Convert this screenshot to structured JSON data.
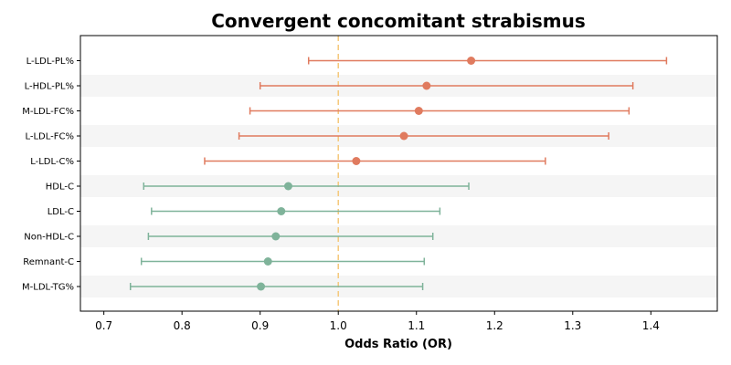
{
  "chart_data": {
    "type": "forest",
    "title": "Convergent concomitant strabismus",
    "xlabel": "Odds Ratio (OR)",
    "ylabel": "",
    "xlim": [
      0.67,
      1.485
    ],
    "xticks": [
      0.7,
      0.8,
      0.9,
      1.0,
      1.1,
      1.2,
      1.3,
      1.4
    ],
    "xtick_labels": [
      "0.7",
      "0.8",
      "0.9",
      "1.0",
      "1.1",
      "1.2",
      "1.3",
      "1.4"
    ],
    "reference_line": 1.0,
    "reference_color": "#f5c87a",
    "grid": false,
    "row_band_color": "#f5f5f5",
    "colors": {
      "risk": "#e07b5f",
      "protective": "#7fb39a"
    },
    "rows": [
      {
        "label": "L-LDL-PL%",
        "or": 1.17,
        "lower": 0.962,
        "upper": 1.42,
        "group": "risk"
      },
      {
        "label": "L-HDL-PL%",
        "or": 1.113,
        "lower": 0.9,
        "upper": 1.377,
        "group": "risk"
      },
      {
        "label": "M-LDL-FC%",
        "or": 1.103,
        "lower": 0.887,
        "upper": 1.372,
        "group": "risk"
      },
      {
        "label": "L-LDL-FC%",
        "or": 1.084,
        "lower": 0.873,
        "upper": 1.346,
        "group": "risk"
      },
      {
        "label": "L-LDL-C%",
        "or": 1.023,
        "lower": 0.829,
        "upper": 1.265,
        "group": "risk"
      },
      {
        "label": "HDL-C",
        "or": 0.936,
        "lower": 0.751,
        "upper": 1.167,
        "group": "protective"
      },
      {
        "label": "LDL-C",
        "or": 0.927,
        "lower": 0.761,
        "upper": 1.13,
        "group": "protective"
      },
      {
        "label": "Non-HDL-C",
        "or": 0.92,
        "lower": 0.757,
        "upper": 1.121,
        "group": "protective"
      },
      {
        "label": "Remnant-C",
        "or": 0.91,
        "lower": 0.748,
        "upper": 1.11,
        "group": "protective"
      },
      {
        "label": "M-LDL-TG%",
        "or": 0.901,
        "lower": 0.734,
        "upper": 1.108,
        "group": "protective"
      }
    ]
  }
}
